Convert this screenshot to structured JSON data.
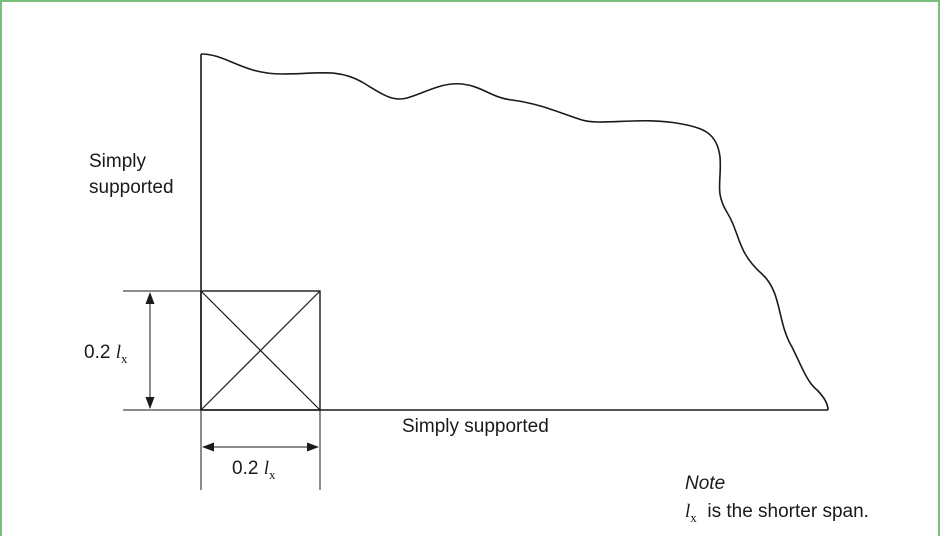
{
  "labels": {
    "left_edge": [
      "Simply",
      "supported"
    ],
    "bottom_edge": "Simply supported",
    "dim_vertical": {
      "prefix": "0.2 ",
      "symbol": "l",
      "subscript": "x"
    },
    "dim_horizontal": {
      "prefix": "0.2 ",
      "symbol": "l",
      "subscript": "x"
    }
  },
  "note": {
    "title": "Note",
    "symbol": "l",
    "subscript": "x",
    "text": "is the shorter span."
  },
  "colors": {
    "frame_border": "#7ac07a",
    "line": "#1a1a1a",
    "text": "#1a1a1a"
  }
}
